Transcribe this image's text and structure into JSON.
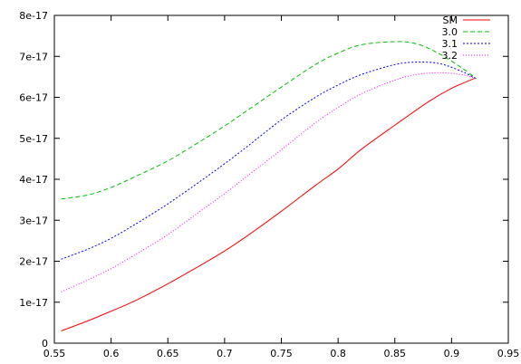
{
  "chart_data": {
    "type": "line",
    "title": "",
    "xlabel": "",
    "ylabel": "",
    "xlim": [
      0.55,
      0.95
    ],
    "ylim": [
      0,
      8e-17
    ],
    "grid": false,
    "legend_position": "top-right",
    "x_ticks": [
      {
        "value": 0.55,
        "label": "0.55"
      },
      {
        "value": 0.6,
        "label": "0.6"
      },
      {
        "value": 0.65,
        "label": "0.65"
      },
      {
        "value": 0.7,
        "label": "0.7"
      },
      {
        "value": 0.75,
        "label": "0.75"
      },
      {
        "value": 0.8,
        "label": "0.8"
      },
      {
        "value": 0.85,
        "label": "0.85"
      },
      {
        "value": 0.9,
        "label": "0.9"
      },
      {
        "value": 0.95,
        "label": "0.95"
      }
    ],
    "y_ticks": [
      {
        "value": 0,
        "label": "0"
      },
      {
        "value": 1e-17,
        "label": "1e-17"
      },
      {
        "value": 2e-17,
        "label": "2e-17"
      },
      {
        "value": 3e-17,
        "label": "3e-17"
      },
      {
        "value": 4e-17,
        "label": "4e-17"
      },
      {
        "value": 5e-17,
        "label": "5e-17"
      },
      {
        "value": 6e-17,
        "label": "6e-17"
      },
      {
        "value": 7e-17,
        "label": "7e-17"
      },
      {
        "value": 8e-17,
        "label": "8e-17"
      }
    ],
    "series": [
      {
        "name": "SM",
        "color": "#ff0000",
        "dash": "",
        "x": [
          0.556,
          0.58,
          0.6,
          0.62,
          0.65,
          0.68,
          0.7,
          0.72,
          0.75,
          0.78,
          0.8,
          0.82,
          0.85,
          0.88,
          0.9,
          0.92
        ],
        "y": [
          3e-18,
          5.5e-18,
          7.8e-18,
          1.02e-17,
          1.45e-17,
          1.92e-17,
          2.25e-17,
          2.62e-17,
          3.22e-17,
          3.85e-17,
          4.25e-17,
          4.72e-17,
          5.32e-17,
          5.9e-17,
          6.22e-17,
          6.46e-17
        ]
      },
      {
        "name": "3.0",
        "color": "#00c000",
        "dash": "5,3",
        "x": [
          0.556,
          0.58,
          0.6,
          0.62,
          0.65,
          0.68,
          0.7,
          0.72,
          0.75,
          0.78,
          0.8,
          0.82,
          0.85,
          0.87,
          0.89,
          0.91,
          0.922
        ],
        "y": [
          3.52e-17,
          3.62e-17,
          3.8e-17,
          4.05e-17,
          4.45e-17,
          4.95e-17,
          5.3e-17,
          5.68e-17,
          6.25e-17,
          6.8e-17,
          7.08e-17,
          7.28e-17,
          7.36e-17,
          7.3e-17,
          7.05e-17,
          6.7e-17,
          6.45e-17
        ]
      },
      {
        "name": "3.1",
        "color": "#0000ff",
        "dash": "2,2",
        "x": [
          0.556,
          0.58,
          0.6,
          0.62,
          0.65,
          0.68,
          0.7,
          0.72,
          0.75,
          0.78,
          0.8,
          0.82,
          0.85,
          0.87,
          0.89,
          0.91,
          0.922
        ],
        "y": [
          2.05e-17,
          2.3e-17,
          2.56e-17,
          2.88e-17,
          3.4e-17,
          3.98e-17,
          4.38e-17,
          4.8e-17,
          5.45e-17,
          6e-17,
          6.3e-17,
          6.55e-17,
          6.8e-17,
          6.86e-17,
          6.82e-17,
          6.62e-17,
          6.45e-17
        ]
      },
      {
        "name": "3.2",
        "color": "#ff00ff",
        "dash": "1,2",
        "x": [
          0.556,
          0.58,
          0.6,
          0.62,
          0.65,
          0.68,
          0.7,
          0.72,
          0.75,
          0.78,
          0.8,
          0.82,
          0.85,
          0.87,
          0.89,
          0.91,
          0.922
        ],
        "y": [
          1.25e-17,
          1.55e-17,
          1.82e-17,
          2.14e-17,
          2.65e-17,
          3.25e-17,
          3.65e-17,
          4.08e-17,
          4.72e-17,
          5.38e-17,
          5.75e-17,
          6.08e-17,
          6.42e-17,
          6.56e-17,
          6.6e-17,
          6.55e-17,
          6.45e-17
        ]
      }
    ]
  }
}
